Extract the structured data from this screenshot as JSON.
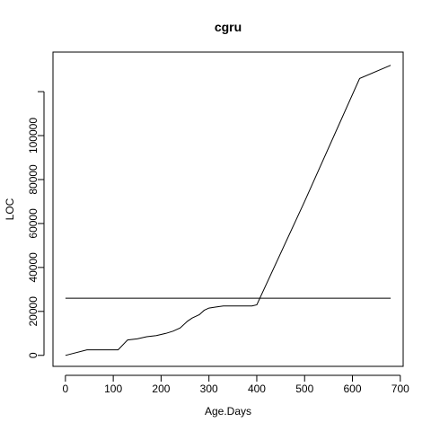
{
  "chart_data": {
    "type": "line",
    "title": "cgru",
    "xlabel": "Age.Days",
    "ylabel": "LOC",
    "xlim": [
      -26,
      706
    ],
    "ylim": [
      -5000,
      138000
    ],
    "x_ticks": [
      0,
      100,
      200,
      300,
      400,
      500,
      600,
      700
    ],
    "y_ticks": [
      0,
      20000,
      40000,
      60000,
      80000,
      100000
    ],
    "x_tick_labels": [
      "0",
      "100",
      "200",
      "300",
      "400",
      "500",
      "600",
      "700"
    ],
    "y_tick_labels": [
      "0",
      "20000",
      "40000",
      "60000",
      "80000",
      "100000"
    ],
    "y_extra_tick": 120000,
    "grid": false,
    "legend": "none",
    "colors": {
      "line": "#000000",
      "axis": "#000000",
      "background": "#ffffff"
    },
    "series": [
      {
        "x": [
          0,
          45,
          110,
          130,
          150,
          170,
          190,
          210,
          225,
          240,
          255,
          265,
          280,
          290,
          300,
          315,
          330,
          345,
          360,
          375,
          390,
          400,
          500,
          615,
          680
        ],
        "y": [
          0,
          2500,
          2500,
          7000,
          7500,
          8500,
          9000,
          10000,
          11000,
          12500,
          15500,
          17000,
          18500,
          20500,
          21500,
          22000,
          22500,
          22500,
          22500,
          22500,
          22500,
          23000,
          70000,
          126000,
          132000
        ]
      },
      {
        "x": [
          0,
          680
        ],
        "y": [
          26000,
          26000
        ]
      }
    ]
  }
}
